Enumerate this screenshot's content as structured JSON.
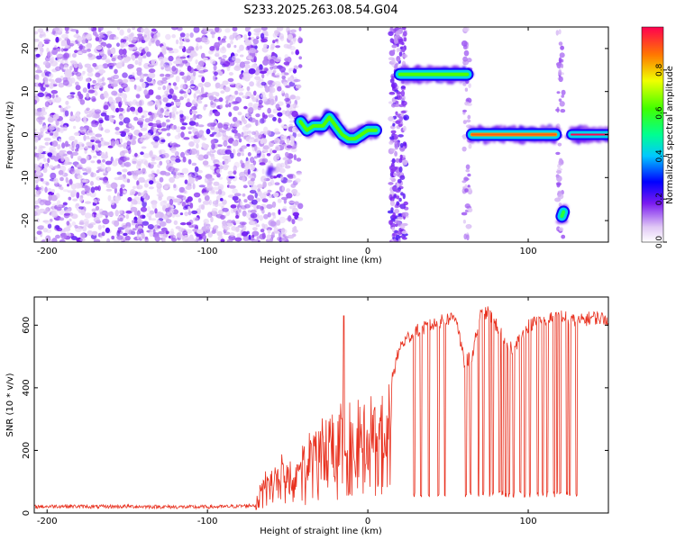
{
  "title": "S233.2025.263.08.54.G04",
  "chart_data": [
    {
      "type": "heatmap",
      "title": "S233.2025.263.08.54.G04",
      "xlabel": "Height of straight line (km)",
      "ylabel": "Frequency (Hz)",
      "xlim": [
        -208,
        150
      ],
      "ylim": [
        -25,
        25
      ],
      "xticks": [
        -200,
        -100,
        0,
        100
      ],
      "xtick_labels": [
        "-200",
        "-100",
        "0",
        "100"
      ],
      "yticks": [
        -20,
        -10,
        0,
        10,
        20
      ],
      "ytick_labels": [
        "-20",
        "-10",
        "0",
        "10",
        "20"
      ],
      "noise_band_km": [
        -208,
        -42
      ],
      "features": [
        {
          "name": "track-a",
          "x_km": [
            -42,
            -38,
            -34,
            -28,
            -24,
            -20,
            -16,
            -12,
            -8,
            -4,
            0,
            5
          ],
          "f_hz": [
            3,
            1,
            2,
            2,
            4,
            2,
            0,
            -1,
            -1,
            0,
            1,
            1
          ],
          "amp": 0.55
        },
        {
          "name": "band-b",
          "x_km": [
            20,
            26,
            32,
            38,
            44,
            50,
            56,
            62
          ],
          "f_hz": [
            14,
            14,
            14,
            14,
            14,
            14,
            14,
            14
          ],
          "amp": 0.55
        },
        {
          "name": "line-c",
          "x_km": [
            65,
            72,
            80,
            88,
            96,
            104,
            112,
            117
          ],
          "f_hz": [
            0,
            0,
            0,
            0,
            0,
            0,
            0,
            0
          ],
          "amp": 0.9
        },
        {
          "name": "line-d",
          "x_km": [
            127,
            135,
            143,
            150
          ],
          "f_hz": [
            0,
            0,
            0,
            0
          ],
          "amp": 1.0
        },
        {
          "name": "blob-e",
          "x_km": [
            121,
            122
          ],
          "f_hz": [
            -19,
            -18
          ],
          "amp": 0.45
        },
        {
          "name": "blob-f",
          "x_km": [
            -60
          ],
          "f_hz": [
            -8
          ],
          "amp": 0.2
        }
      ]
    },
    {
      "type": "colorbar",
      "label": "Normalized spectral amplitude",
      "range": [
        0,
        1
      ],
      "ticks": [
        "0.0",
        "0.2",
        "0.4",
        "0.6",
        "0.8"
      ]
    },
    {
      "type": "line",
      "xlabel": "Height of straight line (km)",
      "ylabel": "SNR (10 * v/v)",
      "xlim": [
        -208,
        150
      ],
      "ylim": [
        0,
        690
      ],
      "xticks": [
        -200,
        -100,
        0,
        100
      ],
      "xtick_labels": [
        "-200",
        "-100",
        "0",
        "100"
      ],
      "yticks": [
        0,
        200,
        400,
        600
      ],
      "ytick_labels": [
        "0",
        "200",
        "400",
        "600"
      ],
      "color": "#e8301e",
      "series": [
        {
          "name": "SNR",
          "x": [
            -208,
            -190,
            -170,
            -150,
            -130,
            -110,
            -90,
            -80,
            -70,
            -65,
            -60,
            -50,
            -40,
            -30,
            -20,
            -15,
            -10,
            0,
            10,
            15,
            20,
            25,
            30,
            40,
            50,
            55,
            60,
            65,
            70,
            75,
            80,
            90,
            100,
            110,
            120,
            130,
            140,
            150
          ],
          "y": [
            20,
            22,
            20,
            21,
            20,
            19,
            20,
            22,
            25,
            120,
            150,
            170,
            230,
            280,
            310,
            350,
            330,
            370,
            400,
            430,
            530,
            560,
            580,
            600,
            620,
            630,
            480,
            500,
            630,
            640,
            600,
            520,
            600,
            620,
            630,
            610,
            625,
            620
          ]
        }
      ],
      "annotations": {
        "spike": {
          "x": -15,
          "y": 630
        },
        "dropout_x_km": [
          29,
          33,
          38,
          44,
          48,
          61,
          64,
          69,
          72,
          76,
          78,
          82,
          84,
          86,
          88,
          91,
          95,
          98,
          101,
          106,
          109,
          112,
          116,
          118,
          120,
          124,
          126,
          130
        ],
        "dropout_level": 50
      }
    }
  ]
}
